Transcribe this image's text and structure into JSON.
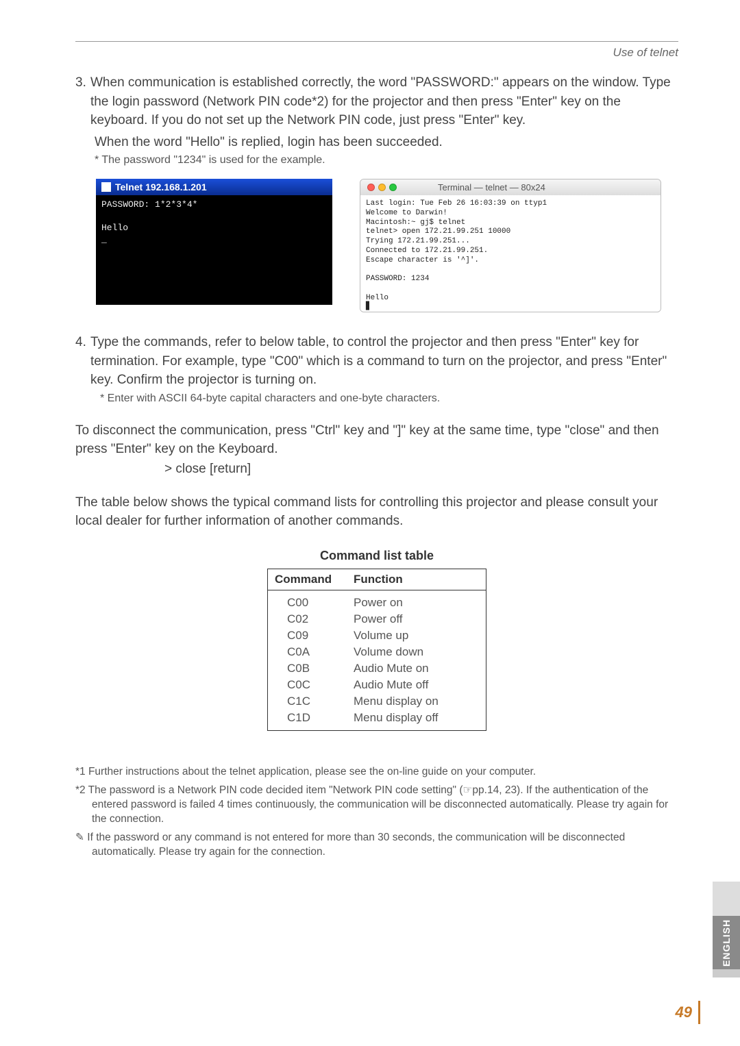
{
  "header": {
    "section": "Use of telnet"
  },
  "step3": {
    "num": "3.",
    "text": "When communication is established correctly, the word \"PASSWORD:\" appears on the window. Type the login password (Network PIN code*2) for the projector and then press \"Enter\" key on the keyboard. If you do not set up the Network PIN code, just press \"Enter\" key.",
    "line2": "When the word \"Hello\" is replied, login has been succeeded.",
    "note": "* The password \"1234\" is used for the example."
  },
  "win_telnet": {
    "title": "Telnet 192.168.1.201",
    "body": "PASSWORD: 1*2*3*4*\n\nHello\n_"
  },
  "mac_term": {
    "title": "Terminal — telnet — 80x24",
    "body": "Last login: Tue Feb 26 16:03:39 on ttyp1\nWelcome to Darwin!\nMacintosh:~ gj$ telnet\ntelnet> open 172.21.99.251 10000\nTrying 172.21.99.251...\nConnected to 172.21.99.251.\nEscape character is '^]'.\n\nPASSWORD: 1234\n\nHello\n▊"
  },
  "step4": {
    "num": "4.",
    "text": "Type the commands, refer to below table, to control the projector and then press \"Enter\" key for termination. For example, type \"C00\" which is a command to turn on the projector, and press \"Enter\" key. Confirm the projector is turning on.",
    "note": "* Enter with ASCII 64-byte capital characters and one-byte characters."
  },
  "disconnect": {
    "p1": "To disconnect the communication, press \"Ctrl\" key and \"]\" key at the same time, type \"close\" and then press \"Enter\" key on the Keyboard.",
    "cmd": "> close [return]"
  },
  "table_intro": "The table below shows the typical command lists for controlling this projector and please consult your local dealer for further information of another commands.",
  "cmd_table": {
    "title": "Command list table",
    "head_cmd": "Command",
    "head_fn": "Function",
    "rows": [
      {
        "cmd": "C00",
        "fn": "Power on"
      },
      {
        "cmd": "C02",
        "fn": "Power off"
      },
      {
        "cmd": "C09",
        "fn": "Volume up"
      },
      {
        "cmd": "C0A",
        "fn": "Volume down"
      },
      {
        "cmd": "C0B",
        "fn": "Audio Mute on"
      },
      {
        "cmd": "C0C",
        "fn": "Audio Mute off"
      },
      {
        "cmd": "C1C",
        "fn": "Menu display on"
      },
      {
        "cmd": "C1D",
        "fn": "Menu display off"
      }
    ]
  },
  "footnotes": {
    "f1": "*1 Further instructions about the telnet application, please see the on-line guide on your computer.",
    "f2": "*2 The password is a Network PIN code decided item \"Network PIN code setting\" (☞pp.14, 23). If the authentication of the entered password is failed 4 times continuously, the communication will be disconnected automatically. Please try again for the connection.",
    "f3": "✎ If the password or any command is not entered for more than 30 seconds, the communication will be disconnected automatically. Please try again for the connection."
  },
  "side": {
    "lang": "ENGLISH"
  },
  "page_number": "49"
}
